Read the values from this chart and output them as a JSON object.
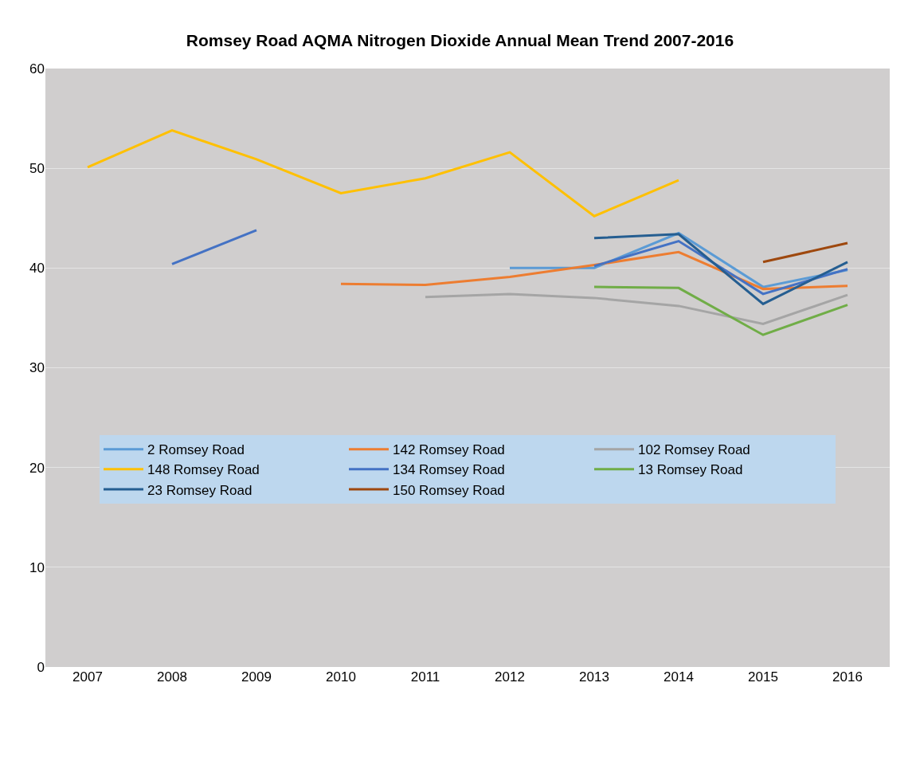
{
  "chart_data": {
    "type": "line",
    "title": "Romsey Road AQMA Nitrogen Dioxide Annual Mean Trend 2007-2016",
    "categories": [
      "2007",
      "2008",
      "2009",
      "2010",
      "2011",
      "2012",
      "2013",
      "2014",
      "2015",
      "2016"
    ],
    "series": [
      {
        "name": "2 Romsey Road",
        "color": "#5b9bd5",
        "values": [
          null,
          null,
          null,
          null,
          null,
          40.0,
          40.0,
          43.5,
          38.1,
          39.8
        ]
      },
      {
        "name": "142 Romsey Road",
        "color": "#ed7d31",
        "values": [
          null,
          null,
          null,
          38.4,
          38.3,
          39.1,
          40.3,
          41.6,
          37.9,
          38.2
        ]
      },
      {
        "name": "102 Romsey Road",
        "color": "#a5a5a5",
        "values": [
          null,
          null,
          null,
          null,
          37.1,
          37.4,
          37.0,
          36.2,
          34.4,
          37.3
        ]
      },
      {
        "name": "148 Romsey Road",
        "color": "#ffc000",
        "values": [
          50.1,
          53.8,
          50.9,
          47.5,
          49.0,
          51.6,
          45.2,
          48.8,
          null,
          null
        ]
      },
      {
        "name": "134 Romsey Road",
        "color": "#4472c4",
        "values": [
          null,
          40.4,
          43.8,
          null,
          null,
          null,
          40.2,
          42.7,
          37.4,
          39.9
        ]
      },
      {
        "name": "13 Romsey Road",
        "color": "#70ad47",
        "values": [
          null,
          null,
          null,
          null,
          null,
          null,
          38.1,
          38.0,
          33.3,
          36.3
        ]
      },
      {
        "name": "23 Romsey Road",
        "color": "#255e91",
        "values": [
          null,
          null,
          null,
          null,
          null,
          null,
          43.0,
          43.4,
          36.4,
          40.6
        ]
      },
      {
        "name": "150 Romsey Road",
        "color": "#9e480e",
        "values": [
          null,
          null,
          null,
          null,
          null,
          null,
          null,
          null,
          40.6,
          42.5
        ]
      }
    ],
    "ylim": [
      0,
      60
    ],
    "yticks": [
      0,
      10,
      20,
      30,
      40,
      50,
      60
    ],
    "grid": "y",
    "legend": "center",
    "marker": "none",
    "line_style": "solid"
  }
}
